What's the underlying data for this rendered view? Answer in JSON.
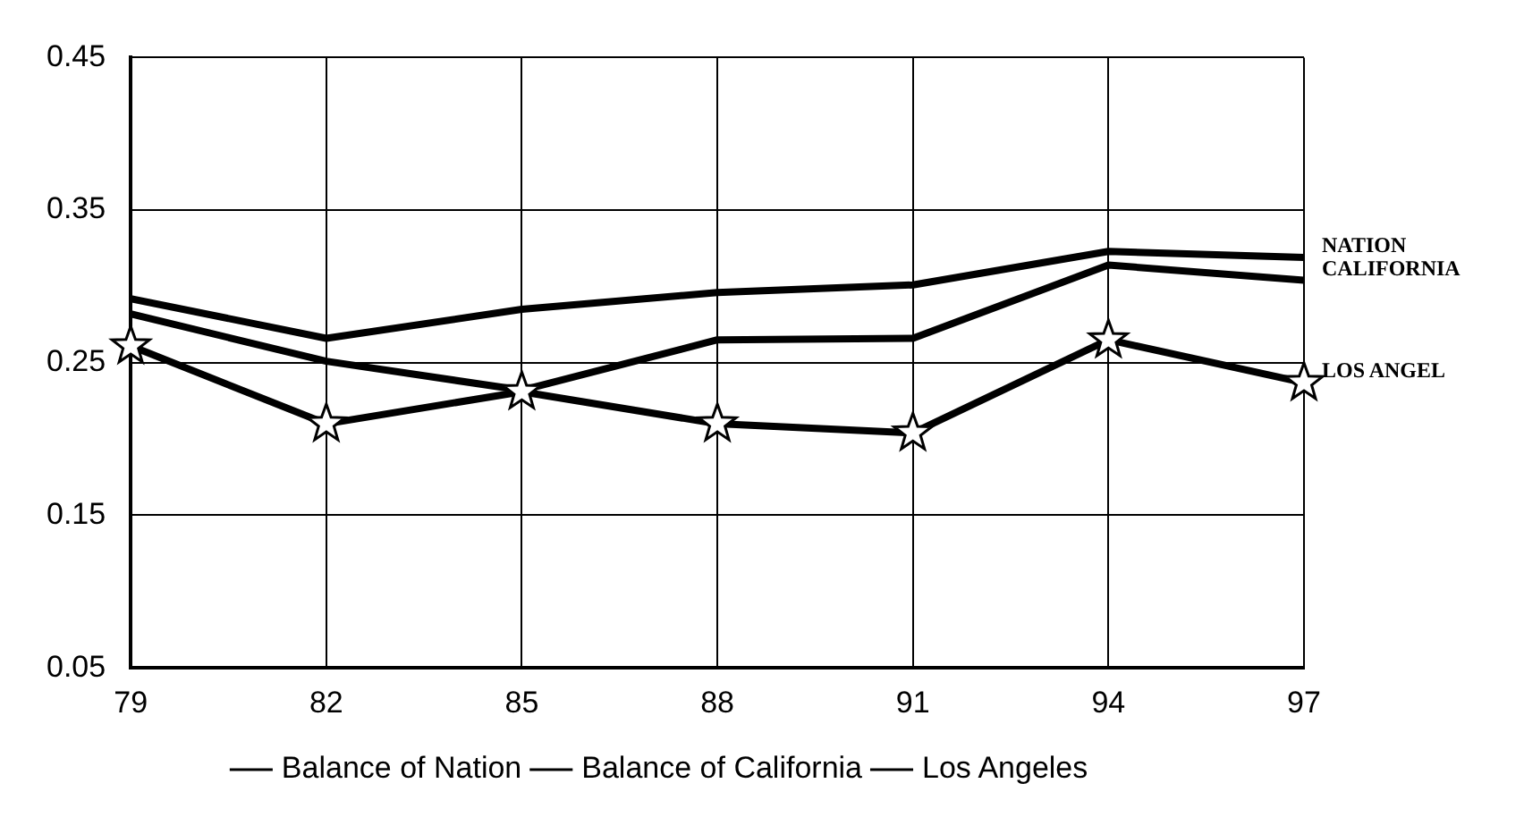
{
  "chart_data": {
    "type": "line",
    "x": [
      79,
      82,
      85,
      88,
      91,
      94,
      97
    ],
    "series": [
      {
        "name": "Balance of Nation",
        "color": "#000000",
        "values": [
          0.292,
          0.266,
          0.285,
          0.296,
          0.301,
          0.323,
          0.319
        ],
        "marker": "none"
      },
      {
        "name": "Balance of California",
        "color": "#000000",
        "values": [
          0.282,
          0.251,
          0.232,
          0.265,
          0.266,
          0.314,
          0.304
        ],
        "marker": "none"
      },
      {
        "name": "Los Angeles",
        "color": "#000000",
        "values": [
          0.261,
          0.21,
          0.231,
          0.21,
          0.204,
          0.265,
          0.237
        ],
        "marker": "star"
      }
    ],
    "xlim": [
      79,
      97
    ],
    "xticks": [
      79,
      82,
      85,
      88,
      91,
      94,
      97
    ],
    "ylim": [
      0.05,
      0.45
    ],
    "yticks": [
      {
        "value": 0.05,
        "label": "0.05"
      },
      {
        "value": 0.15,
        "label": "0.15"
      },
      {
        "value": 0.25,
        "label": "0.25"
      },
      {
        "value": 0.35,
        "label": "0.35"
      },
      {
        "value": 0.45,
        "label": "0.45"
      }
    ],
    "grid": true,
    "legend": "bottom",
    "line_style": "solid",
    "annotations": [
      "NATION",
      "CALIFORNIA",
      "LOS ANGEL"
    ]
  }
}
